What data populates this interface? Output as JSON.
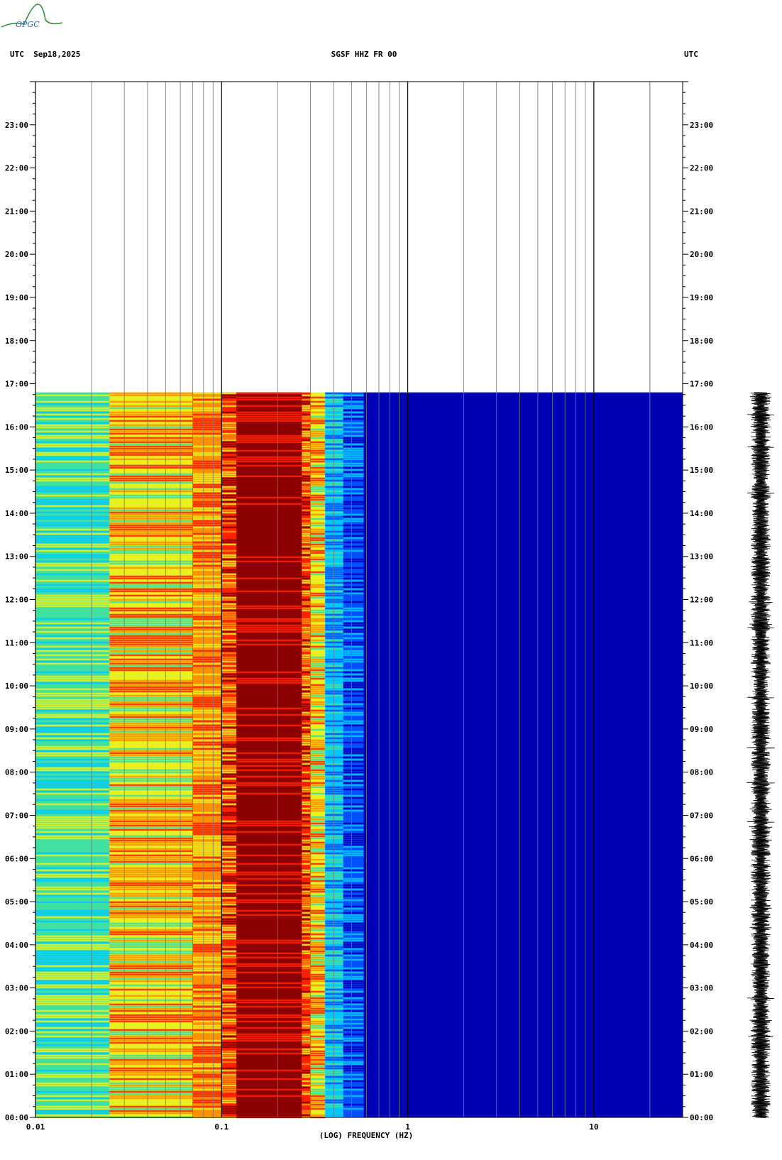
{
  "header": {
    "left": "UTC  Sep18,2025",
    "center": "SGSF HHZ FR 00",
    "right": "UTC"
  },
  "logo_text": "OPGC",
  "colors": {
    "quiet": "#0000b4",
    "low": "#0050ff",
    "mid": "#00c8ff",
    "green": "#40e0a0",
    "yellow": "#e8f020",
    "orange": "#ff9000",
    "red": "#ff2000",
    "darkred": "#8b0000",
    "trace": "#000000"
  },
  "chart_data": {
    "type": "heatmap",
    "title": "SGSF HHZ FR 00",
    "xlabel": "(LOG) FREQUENCY (HZ)",
    "ylabel": "UTC",
    "x_scale": "log",
    "xlim": [
      0.01,
      30
    ],
    "x_tick_labels": [
      "0.01",
      "0.1",
      "1",
      "10"
    ],
    "x_ticks": [
      0.01,
      0.1,
      1,
      10
    ],
    "y_range_hours": [
      0,
      24
    ],
    "y_tick_labels": [
      "00:00",
      "01:00",
      "02:00",
      "03:00",
      "04:00",
      "05:00",
      "06:00",
      "07:00",
      "08:00",
      "09:00",
      "10:00",
      "11:00",
      "12:00",
      "13:00",
      "14:00",
      "15:00",
      "16:00",
      "17:00",
      "18:00",
      "19:00",
      "20:00",
      "21:00",
      "22:00",
      "23:00"
    ],
    "data_end_hour": 16.8,
    "grid": true,
    "bands": [
      {
        "from_hz": 0.01,
        "to_hz": 0.025,
        "level": "green"
      },
      {
        "from_hz": 0.025,
        "to_hz": 0.07,
        "level": "yellow"
      },
      {
        "from_hz": 0.07,
        "to_hz": 0.1,
        "level": "orange"
      },
      {
        "from_hz": 0.1,
        "to_hz": 0.12,
        "level": "red"
      },
      {
        "from_hz": 0.12,
        "to_hz": 0.27,
        "level": "darkred"
      },
      {
        "from_hz": 0.27,
        "to_hz": 0.3,
        "level": "red"
      },
      {
        "from_hz": 0.3,
        "to_hz": 0.36,
        "level": "yellow"
      },
      {
        "from_hz": 0.36,
        "to_hz": 0.45,
        "level": "mid"
      },
      {
        "from_hz": 0.45,
        "to_hz": 0.58,
        "level": "low"
      },
      {
        "from_hz": 0.58,
        "to_hz": 30,
        "level": "quiet"
      }
    ]
  }
}
